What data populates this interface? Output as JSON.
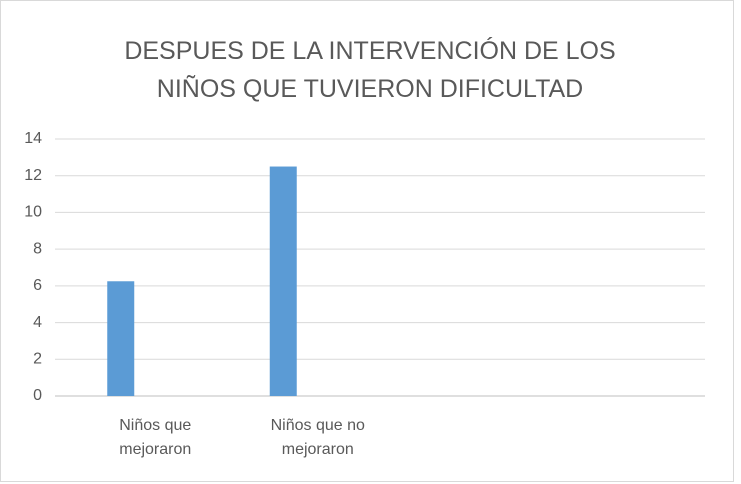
{
  "chart_data": {
    "type": "bar",
    "title": "DESPUES DE LA INTERVENCIÓN DE LOS NIÑOS QUE TUVIERON DIFICULTAD",
    "categories": [
      "Niños que mejoraron",
      "Niños que no mejoraron",
      null,
      null
    ],
    "values": [
      6.25,
      12.5,
      null,
      null
    ],
    "color": "#5b9bd5",
    "ylim": [
      0,
      14
    ],
    "yticks": [
      0,
      2,
      4,
      6,
      8,
      10,
      12,
      14
    ],
    "grid": true
  }
}
